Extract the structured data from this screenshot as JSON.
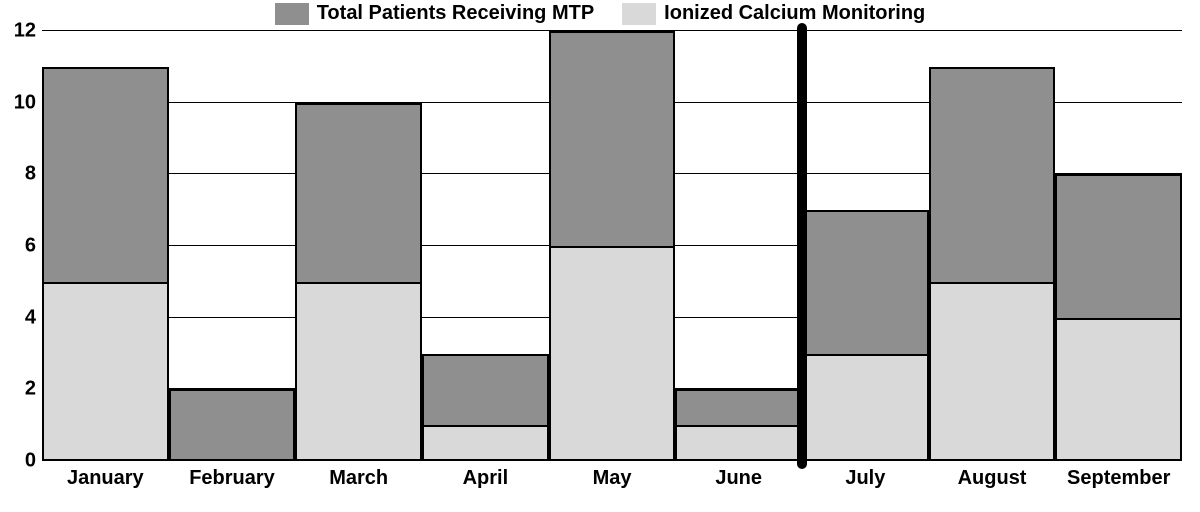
{
  "legend": {
    "series1": {
      "label": "Total Patients Receiving MTP",
      "color": "#8f8f8f"
    },
    "series2": {
      "label": "Ionized Calcium Monitoring",
      "color": "#d9d9d9"
    }
  },
  "chart": {
    "type": "bar",
    "ylim": [
      0,
      12
    ],
    "yticks": [
      0,
      2,
      4,
      6,
      8,
      10,
      12
    ],
    "ytick_labels": [
      "0",
      "2",
      "4",
      "6",
      "8",
      "10",
      "12"
    ],
    "grid_values": [
      2,
      4,
      6,
      8,
      10,
      12
    ],
    "categories": [
      "January",
      "February",
      "March",
      "April",
      "May",
      "June",
      "July",
      "August",
      "September"
    ],
    "series_back": {
      "name": "Total Patients Receiving MTP",
      "color": "#8f8f8f",
      "values": [
        11,
        2,
        10,
        3,
        12,
        2,
        7,
        11,
        8
      ]
    },
    "series_front": {
      "name": "Ionized Calcium Monitoring",
      "color": "#d9d9d9",
      "values": [
        5,
        0,
        5,
        1,
        6,
        1,
        3,
        5,
        4
      ]
    },
    "divider_after_index": 5,
    "grid_color": "#000000",
    "background_color": "#ffffff",
    "bar_border_color": "#000000",
    "bar_border_width": 2,
    "label_fontsize": 20,
    "label_fontweight": 700
  }
}
